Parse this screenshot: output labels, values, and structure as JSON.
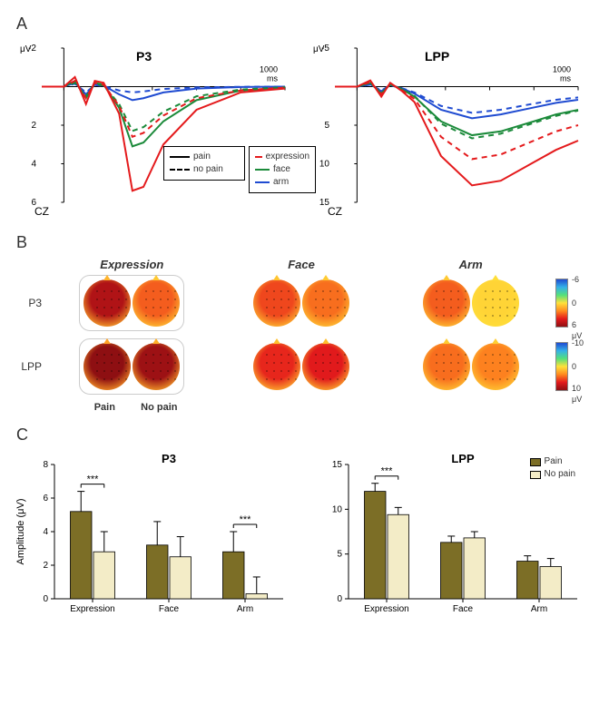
{
  "figure_width": 660,
  "figure_height": 787,
  "background_color": "#ffffff",
  "text_color": "#333333",
  "panel_labels": {
    "A": "A",
    "B": "B",
    "C": "C"
  },
  "panelA": {
    "electrode_label": "CZ",
    "y_unit": "μV",
    "x_unit_end": "1000\nms",
    "legend_style": {
      "pain": "pain",
      "nopain": "no pain"
    },
    "legend_cond": {
      "expression": "expression",
      "face": "face",
      "arm": "arm"
    },
    "colors": {
      "expression": "#e41a1c",
      "face": "#1b8a3a",
      "arm": "#1f4bd1"
    },
    "line_width": 2,
    "dash_pattern": "6,5",
    "left": {
      "title": "P3",
      "ylim": [
        6,
        -2
      ],
      "yticks": [
        -2,
        0,
        2,
        4,
        6
      ],
      "xlim": [
        -100,
        1000
      ],
      "xticks": [
        0,
        200,
        400,
        600,
        800,
        1000
      ],
      "series": {
        "expression_pain": [
          [
            -100,
            0
          ],
          [
            -50,
            0
          ],
          [
            0,
            0
          ],
          [
            50,
            -0.5
          ],
          [
            100,
            0.9
          ],
          [
            140,
            -0.3
          ],
          [
            180,
            -0.2
          ],
          [
            250,
            1.4
          ],
          [
            310,
            5.4
          ],
          [
            360,
            5.2
          ],
          [
            450,
            3.0
          ],
          [
            600,
            1.2
          ],
          [
            800,
            0.3
          ],
          [
            1000,
            0.1
          ]
        ],
        "expression_nopain": [
          [
            -100,
            0
          ],
          [
            -50,
            0
          ],
          [
            0,
            0
          ],
          [
            50,
            -0.3
          ],
          [
            100,
            0.6
          ],
          [
            140,
            -0.2
          ],
          [
            180,
            -0.1
          ],
          [
            250,
            1.0
          ],
          [
            310,
            2.6
          ],
          [
            360,
            2.4
          ],
          [
            450,
            1.5
          ],
          [
            600,
            0.6
          ],
          [
            800,
            0.2
          ],
          [
            1000,
            0.05
          ]
        ],
        "face_pain": [
          [
            -100,
            0
          ],
          [
            -50,
            0
          ],
          [
            0,
            0
          ],
          [
            50,
            -0.3
          ],
          [
            100,
            0.6
          ],
          [
            140,
            -0.2
          ],
          [
            180,
            -0.1
          ],
          [
            250,
            1.1
          ],
          [
            310,
            3.1
          ],
          [
            360,
            2.9
          ],
          [
            450,
            1.8
          ],
          [
            600,
            0.7
          ],
          [
            800,
            0.2
          ],
          [
            1000,
            0.05
          ]
        ],
        "face_nopain": [
          [
            -100,
            0
          ],
          [
            -50,
            0
          ],
          [
            0,
            0
          ],
          [
            50,
            -0.2
          ],
          [
            100,
            0.5
          ],
          [
            140,
            -0.15
          ],
          [
            180,
            -0.05
          ],
          [
            250,
            0.9
          ],
          [
            310,
            2.3
          ],
          [
            360,
            2.1
          ],
          [
            450,
            1.3
          ],
          [
            600,
            0.5
          ],
          [
            800,
            0.15
          ],
          [
            1000,
            0.03
          ]
        ],
        "arm_pain": [
          [
            -100,
            0
          ],
          [
            -50,
            0
          ],
          [
            0,
            0
          ],
          [
            50,
            -0.2
          ],
          [
            100,
            0.4
          ],
          [
            140,
            -0.1
          ],
          [
            180,
            -0.05
          ],
          [
            250,
            0.4
          ],
          [
            310,
            0.7
          ],
          [
            360,
            0.6
          ],
          [
            450,
            0.3
          ],
          [
            600,
            0.1
          ],
          [
            800,
            0.02
          ],
          [
            1000,
            0
          ]
        ],
        "arm_nopain": [
          [
            -100,
            0
          ],
          [
            -50,
            0
          ],
          [
            0,
            0
          ],
          [
            50,
            -0.15
          ],
          [
            100,
            0.3
          ],
          [
            140,
            -0.08
          ],
          [
            180,
            -0.03
          ],
          [
            250,
            0.2
          ],
          [
            310,
            0.3
          ],
          [
            360,
            0.25
          ],
          [
            450,
            0.12
          ],
          [
            600,
            0.04
          ],
          [
            800,
            0.01
          ],
          [
            1000,
            0
          ]
        ]
      }
    },
    "right": {
      "title": "LPP",
      "ylim": [
        15,
        -5
      ],
      "yticks": [
        -5,
        0,
        5,
        10,
        15
      ],
      "xlim": [
        -100,
        1000
      ],
      "xticks": [
        0,
        200,
        400,
        600,
        800,
        1000
      ],
      "series": {
        "expression_pain": [
          [
            -100,
            0
          ],
          [
            -50,
            0
          ],
          [
            0,
            0
          ],
          [
            60,
            -0.8
          ],
          [
            110,
            1.3
          ],
          [
            150,
            -0.5
          ],
          [
            200,
            0.5
          ],
          [
            260,
            2.0
          ],
          [
            380,
            9.0
          ],
          [
            520,
            12.8
          ],
          [
            650,
            12.2
          ],
          [
            800,
            9.8
          ],
          [
            900,
            8.2
          ],
          [
            1000,
            7.0
          ]
        ],
        "expression_nopain": [
          [
            -100,
            0
          ],
          [
            -50,
            0
          ],
          [
            0,
            0
          ],
          [
            60,
            -0.6
          ],
          [
            110,
            1.0
          ],
          [
            150,
            -0.4
          ],
          [
            200,
            0.4
          ],
          [
            260,
            1.6
          ],
          [
            380,
            6.5
          ],
          [
            520,
            9.4
          ],
          [
            650,
            8.8
          ],
          [
            800,
            7.0
          ],
          [
            900,
            5.8
          ],
          [
            1000,
            5.0
          ]
        ],
        "face_pain": [
          [
            -100,
            0
          ],
          [
            -50,
            0
          ],
          [
            0,
            0
          ],
          [
            60,
            -0.5
          ],
          [
            110,
            0.9
          ],
          [
            150,
            -0.3
          ],
          [
            200,
            0.3
          ],
          [
            260,
            1.3
          ],
          [
            380,
            4.5
          ],
          [
            520,
            6.3
          ],
          [
            650,
            5.8
          ],
          [
            800,
            4.5
          ],
          [
            900,
            3.6
          ],
          [
            1000,
            3.0
          ]
        ],
        "face_nopain": [
          [
            -100,
            0
          ],
          [
            -50,
            0
          ],
          [
            0,
            0
          ],
          [
            60,
            -0.5
          ],
          [
            110,
            0.85
          ],
          [
            150,
            -0.28
          ],
          [
            200,
            0.28
          ],
          [
            260,
            1.2
          ],
          [
            380,
            4.8
          ],
          [
            520,
            6.7
          ],
          [
            650,
            6.1
          ],
          [
            800,
            4.7
          ],
          [
            900,
            3.8
          ],
          [
            1000,
            3.1
          ]
        ],
        "arm_pain": [
          [
            -100,
            0
          ],
          [
            -50,
            0
          ],
          [
            0,
            0
          ],
          [
            60,
            -0.3
          ],
          [
            110,
            0.6
          ],
          [
            150,
            -0.2
          ],
          [
            200,
            0.2
          ],
          [
            260,
            0.9
          ],
          [
            380,
            3.0
          ],
          [
            520,
            4.1
          ],
          [
            650,
            3.6
          ],
          [
            800,
            2.7
          ],
          [
            900,
            2.1
          ],
          [
            1000,
            1.7
          ]
        ],
        "arm_nopain": [
          [
            -100,
            0
          ],
          [
            -50,
            0
          ],
          [
            0,
            0
          ],
          [
            60,
            -0.25
          ],
          [
            110,
            0.5
          ],
          [
            150,
            -0.17
          ],
          [
            200,
            0.17
          ],
          [
            260,
            0.75
          ],
          [
            380,
            2.5
          ],
          [
            520,
            3.4
          ],
          [
            650,
            3.0
          ],
          [
            800,
            2.2
          ],
          [
            900,
            1.7
          ],
          [
            1000,
            1.4
          ]
        ]
      }
    }
  },
  "panelB": {
    "col_headers": [
      "Expression",
      "Face",
      "Arm"
    ],
    "row_labels": [
      "P3",
      "LPP"
    ],
    "sub_labels": [
      "Pain",
      "No pain"
    ],
    "topo_diameter": 52,
    "colorbar_p3": {
      "min": -6,
      "mid": 0,
      "max": 6,
      "unit": "μV"
    },
    "colorbar_lpp": {
      "min": -10,
      "mid": 0,
      "max": 10,
      "unit": "μV"
    },
    "gradient": [
      "#1f4bd1",
      "#35b1e8",
      "#55e07a",
      "#ffe13a",
      "#ff8a1f",
      "#e41a1c",
      "#8e0f12"
    ],
    "maps": {
      "P3": {
        "Expression": {
          "Pain": 5.2,
          "No pain": 2.8
        },
        "Face": {
          "Pain": 3.2,
          "No pain": 2.5
        },
        "Arm": {
          "Pain": 2.8,
          "No pain": 0.3
        }
      },
      "LPP": {
        "Expression": {
          "Pain": 12.0,
          "No pain": 9.4
        },
        "Face": {
          "Pain": 6.3,
          "No pain": 6.8
        },
        "Arm": {
          "Pain": 4.2,
          "No pain": 3.6
        }
      }
    }
  },
  "panelC": {
    "y_label": "Amplitude (μV)",
    "categories": [
      "Expression",
      "Face",
      "Arm"
    ],
    "colors": {
      "pain": "#7c6e26",
      "nopain": "#f3ecc7",
      "border": "#000000"
    },
    "legend": {
      "pain": "Pain",
      "nopain": "No pain"
    },
    "sig_marker": "***",
    "left": {
      "title": "P3",
      "ylim": [
        0,
        8
      ],
      "yticks": [
        0,
        2,
        4,
        6,
        8
      ],
      "bars": {
        "Expression": {
          "pain": 5.2,
          "pain_err": 1.2,
          "nopain": 2.8,
          "nopain_err": 1.2,
          "sig": true
        },
        "Face": {
          "pain": 3.2,
          "pain_err": 1.4,
          "nopain": 2.5,
          "nopain_err": 1.2,
          "sig": false
        },
        "Arm": {
          "pain": 2.8,
          "pain_err": 1.2,
          "nopain": 0.3,
          "nopain_err": 1.0,
          "sig": true
        }
      }
    },
    "right": {
      "title": "LPP",
      "ylim": [
        0,
        15
      ],
      "yticks": [
        0,
        5,
        10,
        15
      ],
      "bars": {
        "Expression": {
          "pain": 12.0,
          "pain_err": 0.9,
          "nopain": 9.4,
          "nopain_err": 0.8,
          "sig": true
        },
        "Face": {
          "pain": 6.3,
          "pain_err": 0.7,
          "nopain": 6.8,
          "nopain_err": 0.7,
          "sig": false
        },
        "Arm": {
          "pain": 4.2,
          "pain_err": 0.6,
          "nopain": 3.6,
          "nopain_err": 0.9,
          "sig": false
        }
      }
    }
  }
}
